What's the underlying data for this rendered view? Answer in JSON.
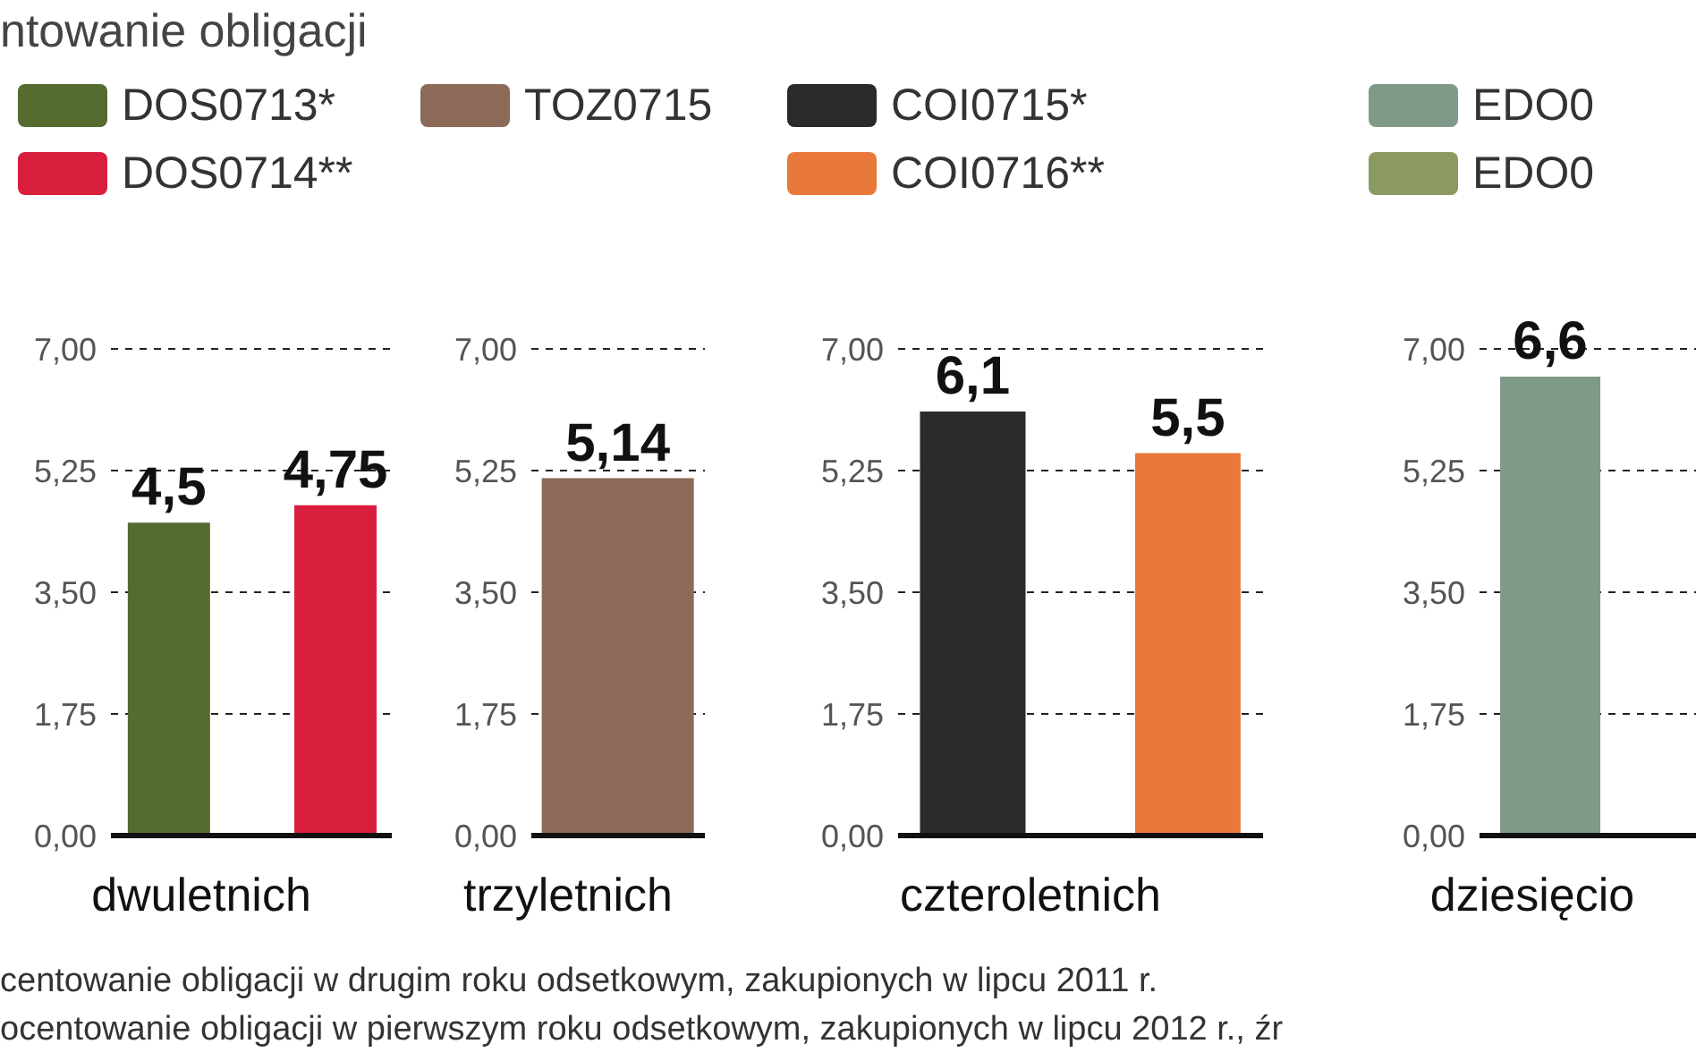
{
  "chart_data": [
    {
      "type": "bar",
      "title": "ntowanie obligacji",
      "xlabel": "dwuletnich",
      "categories": [
        null
      ],
      "series": [
        {
          "name": "DOS0713*",
          "color": "#556b2f",
          "values": [
            4.5
          ],
          "value_labels": [
            "4,5"
          ]
        },
        {
          "name": "DOS0714**",
          "color": "#d81e3c",
          "values": [
            4.75
          ],
          "value_labels": [
            "4,75"
          ]
        }
      ],
      "ylim": [
        0,
        7
      ],
      "yticks": [
        {
          "value": 0,
          "label": "0,00"
        },
        {
          "value": 1.75,
          "label": "1,75"
        },
        {
          "value": 3.5,
          "label": "3,50"
        },
        {
          "value": 5.25,
          "label": "5,25"
        },
        {
          "value": 7,
          "label": "7,00"
        }
      ],
      "grid": "y",
      "legend": "top left",
      "annotations": [
        "centowanie obligacji w drugim roku odsetkowym, zakupionych w lipcu 2011 r.",
        "ocentowanie obligacji w pierwszym roku odsetkowym, zakupionych w lipcu 2012 r., źr"
      ]
    },
    {
      "type": "bar",
      "xlabel": "trzyletnich",
      "categories": [
        null
      ],
      "series": [
        {
          "name": "TOZ0715",
          "color": "#8b6a58",
          "values": [
            5.14
          ],
          "value_labels": [
            "5,14"
          ]
        }
      ],
      "ylim": [
        0,
        7
      ],
      "yticks": [
        {
          "value": 0,
          "label": "0,00"
        },
        {
          "value": 1.75,
          "label": "1,75"
        },
        {
          "value": 3.5,
          "label": "3,50"
        },
        {
          "value": 5.25,
          "label": "5,25"
        },
        {
          "value": 7,
          "label": "7,00"
        }
      ],
      "grid": "y",
      "legend": "top left"
    },
    {
      "type": "bar",
      "xlabel": "czteroletnich",
      "categories": [
        null
      ],
      "series": [
        {
          "name": "COI0715*",
          "color": "#2a2a2a",
          "values": [
            6.1
          ],
          "value_labels": [
            "6,1"
          ]
        },
        {
          "name": "COI0716**",
          "color": "#e8793a",
          "values": [
            5.5
          ],
          "value_labels": [
            "5,5"
          ]
        }
      ],
      "ylim": [
        0,
        7
      ],
      "yticks": [
        {
          "value": 0,
          "label": "0,00"
        },
        {
          "value": 1.75,
          "label": "1,75"
        },
        {
          "value": 3.5,
          "label": "3,50"
        },
        {
          "value": 5.25,
          "label": "5,25"
        },
        {
          "value": 7,
          "label": "7,00"
        }
      ],
      "grid": "y",
      "legend": "top left"
    },
    {
      "type": "bar",
      "xlabel": "dziesięcio",
      "categories": [
        null
      ],
      "series": [
        {
          "name": "EDO0",
          "color": "#7f9a88",
          "values": [
            6.6
          ],
          "value_labels": [
            "6,6"
          ]
        },
        {
          "name": "EDO0",
          "color": "#8a9a60",
          "values": [
            null
          ],
          "value_labels": [
            null
          ]
        }
      ],
      "ylim": [
        0,
        7
      ],
      "yticks": [
        {
          "value": 0,
          "label": "0,00"
        },
        {
          "value": 1.75,
          "label": "1,75"
        },
        {
          "value": 3.5,
          "label": "3,50"
        },
        {
          "value": 5.25,
          "label": "5,25"
        },
        {
          "value": 7,
          "label": "7,00"
        }
      ],
      "grid": "y",
      "legend": "top left"
    }
  ]
}
